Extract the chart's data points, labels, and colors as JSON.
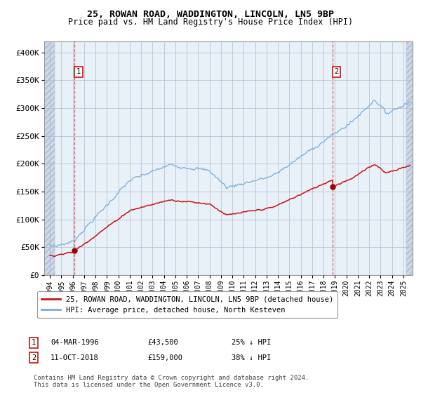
{
  "title1": "25, ROWAN ROAD, WADDINGTON, LINCOLN, LN5 9BP",
  "title2": "Price paid vs. HM Land Registry's House Price Index (HPI)",
  "plot_bg": "#e8f0f8",
  "red_line_label": "25, ROWAN ROAD, WADDINGTON, LINCOLN, LN5 9BP (detached house)",
  "blue_line_label": "HPI: Average price, detached house, North Kesteven",
  "footer": "Contains HM Land Registry data © Crown copyright and database right 2024.\nThis data is licensed under the Open Government Licence v3.0.",
  "purchase1": {
    "label": "1",
    "date": "04-MAR-1996",
    "price": 43500,
    "pct": "25% ↓ HPI",
    "year": 1996.17
  },
  "purchase2": {
    "label": "2",
    "date": "11-OCT-2018",
    "price": 159000,
    "pct": "38% ↓ HPI",
    "year": 2018.78
  },
  "ylim": [
    0,
    420000
  ],
  "xlim_start": 1993.5,
  "xlim_end": 2025.8,
  "yticks": [
    0,
    50000,
    100000,
    150000,
    200000,
    250000,
    300000,
    350000,
    400000
  ],
  "ytick_labels": [
    "£0",
    "£50K",
    "£100K",
    "£150K",
    "£200K",
    "£250K",
    "£300K",
    "£350K",
    "£400K"
  ],
  "hpi_color": "#7aadda",
  "price_color": "#cc1111",
  "marker_color": "#990000",
  "vline_color": "#dd4444",
  "annotation_box_color": "#cc1111",
  "grid_color": "#b0b8d0",
  "hatch_left_end": 1994.42,
  "hatch_right_start": 2025.25,
  "xtick_start": 1994,
  "xtick_end": 2025
}
